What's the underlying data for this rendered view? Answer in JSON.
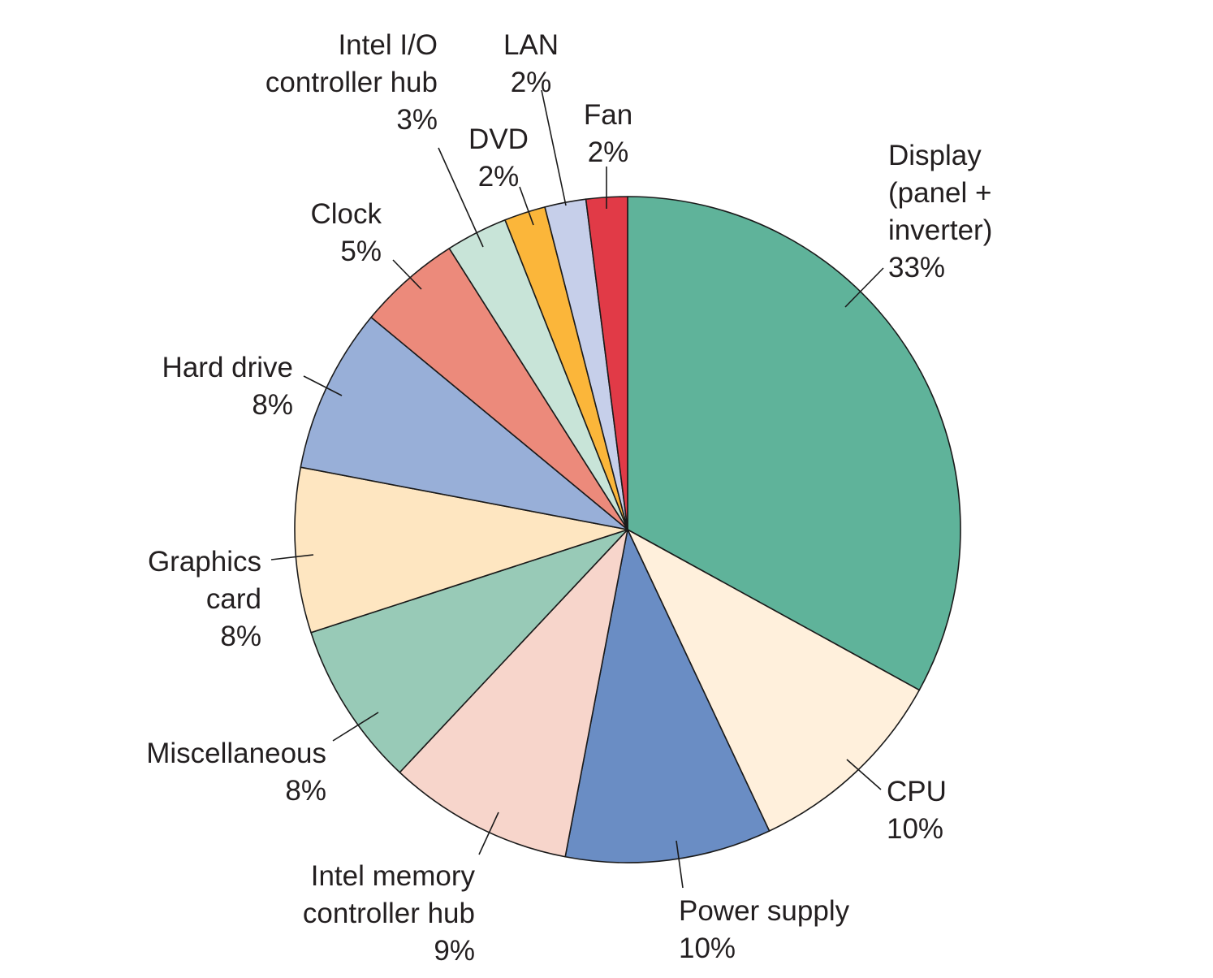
{
  "chart_data": {
    "type": "pie",
    "start_angle_deg": 0,
    "direction": "clockwise",
    "slices": [
      {
        "label_lines": [
          "Display",
          "(panel +",
          "inverter)",
          "33%"
        ],
        "value": 33,
        "color": "#5fb39a"
      },
      {
        "label_lines": [
          "CPU",
          "10%"
        ],
        "value": 10,
        "color": "#fff0dc"
      },
      {
        "label_lines": [
          "Power supply",
          "10%"
        ],
        "value": 10,
        "color": "#6a8dc4"
      },
      {
        "label_lines": [
          "Intel memory",
          "controller hub",
          "9%"
        ],
        "value": 9,
        "color": "#f7d5cb"
      },
      {
        "label_lines": [
          "Miscellaneous",
          "8%"
        ],
        "value": 8,
        "color": "#98cab7"
      },
      {
        "label_lines": [
          "Graphics",
          "card",
          "8%"
        ],
        "value": 8,
        "color": "#fee6c1"
      },
      {
        "label_lines": [
          "Hard drive",
          "8%"
        ],
        "value": 8,
        "color": "#98afd8"
      },
      {
        "label_lines": [
          "Clock",
          "5%"
        ],
        "value": 5,
        "color": "#ec8a7b"
      },
      {
        "label_lines": [
          "Intel I/O",
          "controller hub",
          "3%"
        ],
        "value": 3,
        "color": "#c8e4d8"
      },
      {
        "label_lines": [
          "DVD",
          "2%"
        ],
        "value": 2,
        "color": "#fbb63a"
      },
      {
        "label_lines": [
          "LAN",
          "2%"
        ],
        "value": 2,
        "color": "#c6cfea"
      },
      {
        "label_lines": [
          "Fan",
          "2%"
        ],
        "value": 2,
        "color": "#e13a47"
      }
    ]
  }
}
